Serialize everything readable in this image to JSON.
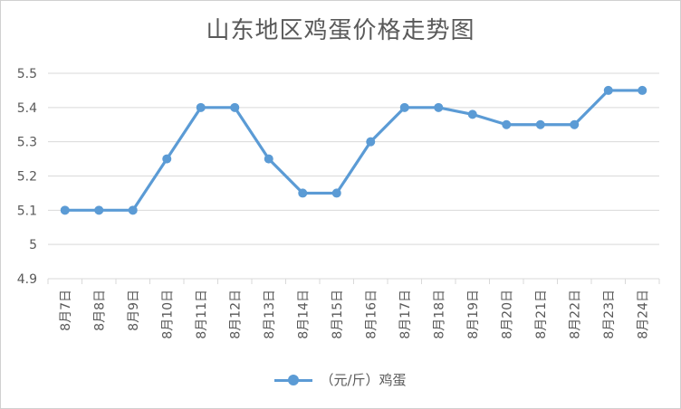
{
  "chart_data": {
    "type": "line",
    "title": "山东地区鸡蛋价格走势图",
    "categories": [
      "8月7日",
      "8月8日",
      "8月9日",
      "8月10日",
      "8月11日",
      "8月12日",
      "8月13日",
      "8月14日",
      "8月15日",
      "8月16日",
      "8月17日",
      "8月18日",
      "8月19日",
      "8月20日",
      "8月21日",
      "8月22日",
      "8月23日",
      "8月24日"
    ],
    "series": [
      {
        "name": "（元/斤）鸡蛋",
        "values": [
          5.1,
          5.1,
          5.1,
          5.25,
          5.4,
          5.4,
          5.25,
          5.15,
          5.15,
          5.3,
          5.4,
          5.4,
          5.38,
          5.35,
          5.35,
          5.35,
          5.45,
          5.45
        ]
      }
    ],
    "y_ticks": [
      "4.9",
      "5",
      "5.1",
      "5.2",
      "5.3",
      "5.4",
      "5.5"
    ],
    "ylim": [
      4.9,
      5.5
    ],
    "grid": true,
    "legend_position": "bottom",
    "colors": {
      "series": "#5b9bd5",
      "grid": "#d9d9d9",
      "text": "#595959"
    }
  }
}
